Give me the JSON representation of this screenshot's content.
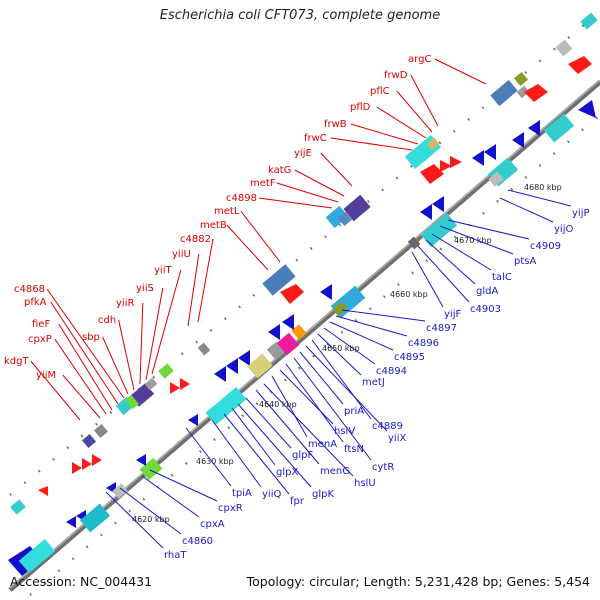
{
  "title": "Escherichia coli CFT073, complete genome",
  "footer": {
    "accession": "Accession: NC_004431",
    "topology": "Topology: circular; Length: 5,231,428 bp; Genes: 5,454"
  },
  "colors": {
    "upper_labels": "#dd0000",
    "lower_labels": "#1a1acc"
  },
  "kbp_ticks": [
    "4620 kbp",
    "4630 kbp",
    "4640 kbp",
    "4650 kbp",
    "4660 kbp",
    "4670 kbp",
    "4680 kbp"
  ],
  "upper_genes": [
    "kdgT",
    "yiiM",
    "cpxP",
    "fieF",
    "pfkA",
    "c4868",
    "sbp",
    "cdh",
    "yiiR",
    "yiiS",
    "yiiT",
    "yiiU",
    "c4882",
    "metB",
    "metL",
    "c4898",
    "metF",
    "katG",
    "yijE",
    "frwC",
    "frwB",
    "pflD",
    "pflC",
    "frwD",
    "argC"
  ],
  "lower_genes": [
    "rhaT",
    "c4860",
    "cpxA",
    "cpxR",
    "tpiA",
    "yiiQ",
    "fpr",
    "glpX",
    "glpK",
    "glpF",
    "menG",
    "hslU",
    "menA",
    "hslV",
    "ftsN",
    "cytR",
    "priA",
    "yiiX",
    "c4889",
    "metJ",
    "c4894",
    "c4895",
    "c4896",
    "c4897",
    "yijF",
    "c4903",
    "gldA",
    "talC",
    "ptsA",
    "c4909",
    "yijO",
    "yijP"
  ]
}
